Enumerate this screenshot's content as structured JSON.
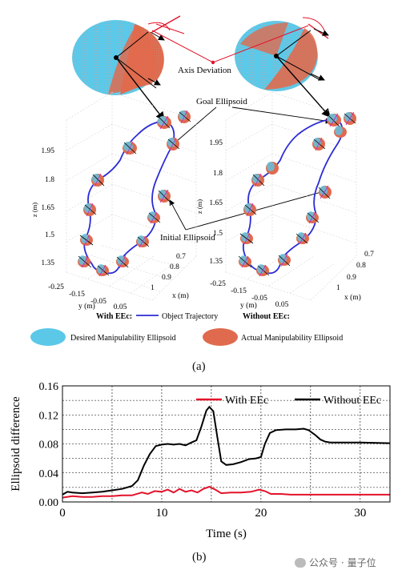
{
  "panel_a": {
    "axis_deviation_label": "Axis Deviation",
    "goal_ellipsoid_label": "Goal Ellipsoid",
    "initial_ellipsoid_label": "Initial Ellipsoid",
    "left_plot": {
      "z_axis_label": "z (m)",
      "y_axis_label": "y (m)",
      "x_axis_label": "x (m)",
      "z_ticks": [
        "1.95",
        "1.8",
        "1.65",
        "1.5",
        "1.35"
      ],
      "y_ticks": [
        "-0.25",
        "-0.15",
        "-0.05",
        "0.05"
      ],
      "x_ticks": [
        "0.7",
        "0.8",
        "0.9",
        "1"
      ]
    },
    "right_plot": {
      "z_axis_label": "z (m)",
      "y_axis_label": "y (m)",
      "x_axis_label": "x (m)",
      "z_ticks": [
        "1.95",
        "1.8",
        "1.65",
        "1.5",
        "1.35"
      ],
      "y_ticks": [
        "-0.25",
        "-0.15",
        "-0.05",
        "0.05"
      ],
      "x_ticks": [
        "0.7",
        "0.8",
        "0.9",
        "1"
      ]
    },
    "legend": {
      "with_eec": "With EEc:",
      "object_trajectory": "Object Trajectory",
      "without_eec": "Without EEc:",
      "desired": "Desired Manipulability Ellipsoid",
      "actual": "Actual Manipulability Ellipsoid"
    },
    "colors": {
      "desired": "#5bc8e8",
      "actual": "#e06a4e",
      "trajectory": "#2b2bd6",
      "axis": "#e3122a"
    },
    "caption": "(a)"
  },
  "panel_b": {
    "caption": "(b)",
    "chart_data": {
      "type": "line",
      "xlabel": "Time (s)",
      "ylabel": "Ellipsoid difference",
      "xlim": [
        0,
        33
      ],
      "ylim": [
        0,
        0.16
      ],
      "x_ticks": [
        "0",
        "10",
        "20",
        "30"
      ],
      "y_ticks": [
        "0.00",
        "0.04",
        "0.08",
        "0.12",
        "0.16"
      ],
      "grid": true,
      "legend_position": "top-right",
      "series": [
        {
          "name": "With EEc",
          "color": "#e3122a",
          "points": [
            [
              0,
              0.006
            ],
            [
              1,
              0.008
            ],
            [
              2,
              0.007
            ],
            [
              3,
              0.007
            ],
            [
              4,
              0.008
            ],
            [
              5,
              0.008
            ],
            [
              6,
              0.009
            ],
            [
              7,
              0.009
            ],
            [
              8,
              0.013
            ],
            [
              8.6,
              0.011
            ],
            [
              9.3,
              0.015
            ],
            [
              10,
              0.014
            ],
            [
              10.6,
              0.017
            ],
            [
              11.2,
              0.013
            ],
            [
              11.8,
              0.018
            ],
            [
              12.4,
              0.014
            ],
            [
              13,
              0.016
            ],
            [
              13.6,
              0.013
            ],
            [
              14.2,
              0.018
            ],
            [
              14.8,
              0.021
            ],
            [
              15.4,
              0.017
            ],
            [
              16,
              0.012
            ],
            [
              17,
              0.013
            ],
            [
              18,
              0.013
            ],
            [
              19,
              0.014
            ],
            [
              19.8,
              0.017
            ],
            [
              20.4,
              0.015
            ],
            [
              21,
              0.011
            ],
            [
              22,
              0.011
            ],
            [
              23,
              0.01
            ],
            [
              24,
              0.01
            ],
            [
              25,
              0.01
            ],
            [
              26,
              0.01
            ],
            [
              27,
              0.01
            ],
            [
              28,
              0.01
            ],
            [
              30,
              0.01
            ],
            [
              33,
              0.01
            ]
          ]
        },
        {
          "name": "Without EEc",
          "color": "#000000",
          "points": [
            [
              0,
              0.01
            ],
            [
              0.5,
              0.014
            ],
            [
              1,
              0.013
            ],
            [
              2,
              0.012
            ],
            [
              3,
              0.013
            ],
            [
              4,
              0.014
            ],
            [
              5,
              0.016
            ],
            [
              6,
              0.018
            ],
            [
              7,
              0.022
            ],
            [
              7.6,
              0.03
            ],
            [
              8.2,
              0.05
            ],
            [
              8.8,
              0.066
            ],
            [
              9.4,
              0.077
            ],
            [
              10,
              0.079
            ],
            [
              10.6,
              0.08
            ],
            [
              11.2,
              0.079
            ],
            [
              11.8,
              0.08
            ],
            [
              12.4,
              0.078
            ],
            [
              13,
              0.082
            ],
            [
              13.5,
              0.085
            ],
            [
              14,
              0.104
            ],
            [
              14.5,
              0.126
            ],
            [
              14.8,
              0.131
            ],
            [
              15.2,
              0.125
            ],
            [
              15.6,
              0.09
            ],
            [
              16,
              0.056
            ],
            [
              16.5,
              0.051
            ],
            [
              17.2,
              0.052
            ],
            [
              18,
              0.055
            ],
            [
              18.8,
              0.059
            ],
            [
              19.5,
              0.06
            ],
            [
              20,
              0.062
            ],
            [
              20.4,
              0.08
            ],
            [
              20.9,
              0.095
            ],
            [
              21.5,
              0.099
            ],
            [
              22.5,
              0.1
            ],
            [
              23.5,
              0.1
            ],
            [
              24.3,
              0.101
            ],
            [
              24.8,
              0.099
            ],
            [
              25.5,
              0.092
            ],
            [
              26,
              0.086
            ],
            [
              26.5,
              0.083
            ],
            [
              27,
              0.082
            ],
            [
              28,
              0.082
            ],
            [
              30,
              0.082
            ],
            [
              33,
              0.081
            ]
          ]
        }
      ]
    }
  },
  "watermark": {
    "platform": "公众号 ·",
    "account": "量子位"
  }
}
